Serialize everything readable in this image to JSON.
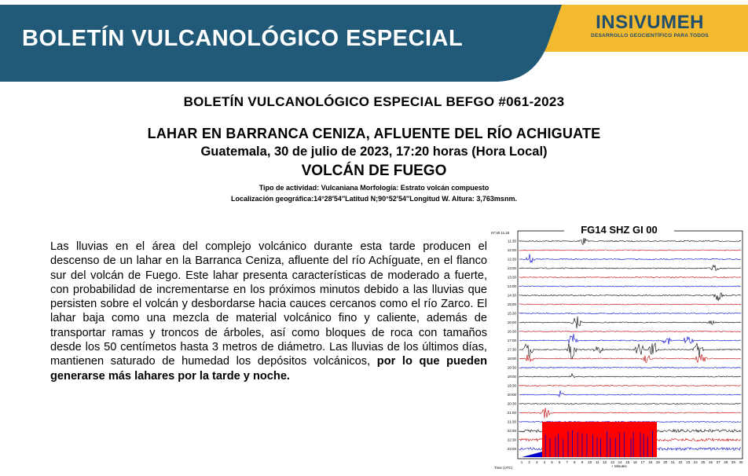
{
  "banner": {
    "title": "BOLETÍN VULCANOLÓGICO ESPECIAL",
    "logo_name": "INSIVUMEH",
    "logo_tagline": "DESARROLLO GEOCIENTÍFICO PARA TODOS",
    "colors": {
      "navy": "#215a79",
      "gold": "#f3b92f",
      "logo_text": "#1f4e6e"
    }
  },
  "header": {
    "bulletin_id": "BOLETÍN VULCANOLÓGICO ESPECIAL BEFGO #061-2023",
    "event_title": "LAHAR EN BARRANCA CENIZA, AFLUENTE DEL RÍO ACHIGUATE",
    "date_line": "Guatemala, 30 de julio de 2023, 17:20 horas (Hora Local)",
    "volcano": "VOLCÁN DE FUEGO",
    "activity": "Tipo de actividad: Vulcaniana Morfología: Estrato volcán compuesto",
    "location": "Localización geográfica:14°28′54″Latitud N;90°52′54″Longitud W. Altura: 3,763msnm."
  },
  "body": {
    "paragraph": "Las lluvias en el área del complejo volcánico durante esta tarde producen el descenso de un lahar en la Barranca Ceniza,  afluente del río Achíguate, en el flanco sur del volcán de Fuego. Este lahar presenta características de moderado a fuerte, con probabilidad de incrementarse en los próximos minutos debido a las lluvias que persisten sobre el volcán y desbordarse hacia cauces cercanos como el río Zarco. El lahar baja como una mezcla de material volcánico fino y caliente, además de transportar ramas y troncos de árboles, así como bloques de roca con tamaños desde los 50 centímetos hasta 3 metros de diámetro. Las lluvias de los últimos días, mantienen saturado de humedad los depósitos volcánicos, ",
    "emphasis": "por lo que pueden generarse más lahares por la tarde y noche."
  },
  "seismogram": {
    "station": "FG14 SHZ GI 00",
    "header_left": "07:30 11.33",
    "time_labels": [
      "11:30",
      "12:00",
      "12:30",
      "13:00",
      "13:30",
      "14:00",
      "14:30",
      "15:00",
      "15:30",
      "16:00",
      "16:30",
      "17:00",
      "17:30",
      "18:00",
      "18:30",
      "19:00",
      "19:30",
      "20:00",
      "20:30",
      "21:00",
      "21:30",
      "22:00",
      "22:30",
      "23:00"
    ],
    "x_ticks": [
      "1",
      "2",
      "3",
      "4",
      "5",
      "6",
      "7",
      "8",
      "9",
      "10",
      "11",
      "12",
      "13",
      "14",
      "15",
      "16",
      "17",
      "18",
      "19",
      "20",
      "21",
      "22",
      "23",
      "24",
      "25",
      "26",
      "27",
      "28",
      "29",
      "30"
    ],
    "x_axis_label": "+ Minutes",
    "y_axis_label": "Time (UTC)",
    "colors": {
      "trace_a": "#000000",
      "trace_b": "#c00000",
      "trace_c": "#0000c8",
      "saturation": "#ff0000"
    }
  }
}
